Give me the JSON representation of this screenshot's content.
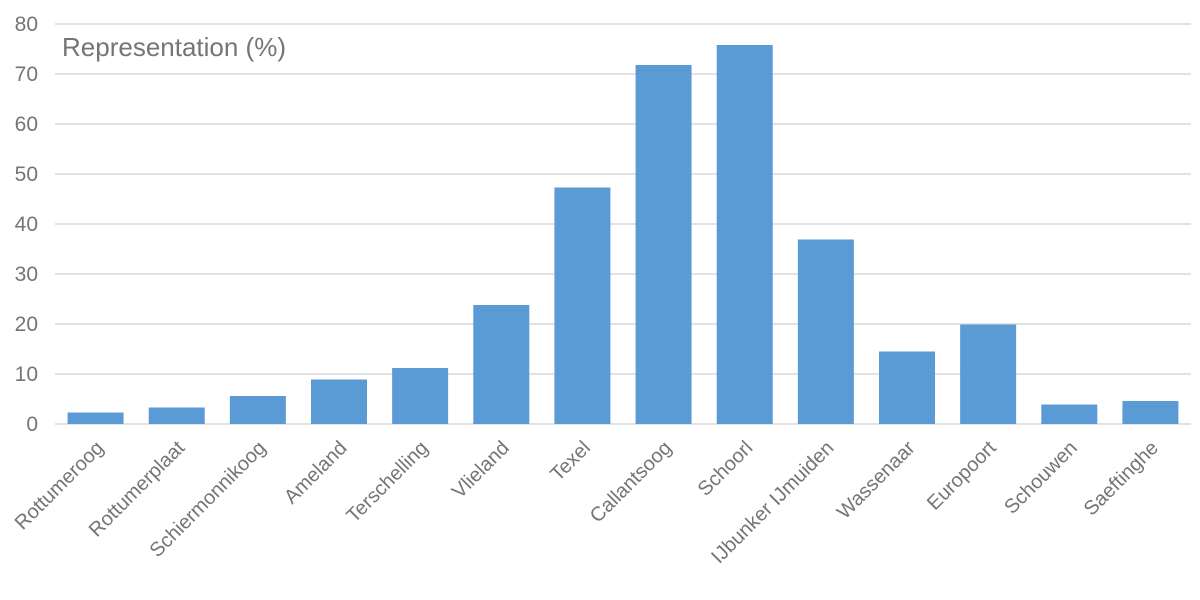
{
  "chart_data": {
    "type": "bar",
    "title": "Representation (%)",
    "categories": [
      "Rottumeroog",
      "Rottumerplaat",
      "Schiermonnikoog",
      "Ameland",
      "Terschelling",
      "Vlieland",
      "Texel",
      "Callantsoog",
      "Schoorl",
      "IJbunker IJmuiden",
      "Wassenaar",
      "Europoort",
      "Schouwen",
      "Saeftinghe"
    ],
    "values": [
      2.3,
      3.3,
      5.6,
      8.9,
      11.2,
      23.8,
      47.3,
      71.8,
      75.8,
      36.9,
      14.5,
      19.9,
      3.9,
      4.6
    ],
    "xlabel": "",
    "ylabel": "",
    "ylim": [
      0,
      80
    ],
    "yticks": [
      0,
      10,
      20,
      30,
      40,
      50,
      60,
      70,
      80
    ],
    "grid": "horizontal-only",
    "legend": "none",
    "x_label_rotation_deg": -45,
    "colors": {
      "bar": "#5B9BD5",
      "gridline": "#D9D9D9",
      "text": "#757575",
      "background": "#FFFFFF"
    }
  }
}
